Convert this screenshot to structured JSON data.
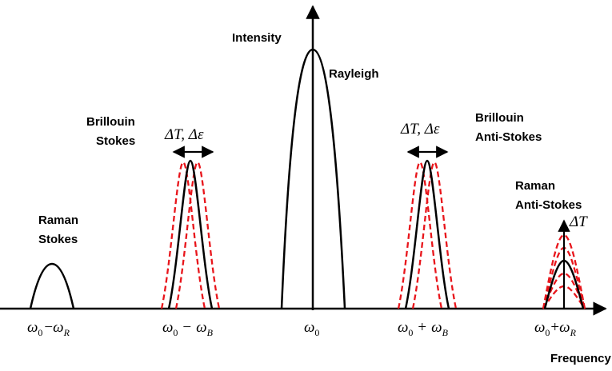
{
  "axis": {
    "y_label": "Intensity",
    "x_label": "Frequency"
  },
  "peaks": {
    "rayleigh": {
      "label": "Rayleigh"
    },
    "brillouin_stokes": {
      "label_line1": "Brillouin",
      "label_line2": "Stokes",
      "shift": "ΔT, Δε"
    },
    "brillouin_antistokes": {
      "label_line1": "Brillouin",
      "label_line2": "Anti-Stokes",
      "shift": "ΔT, Δε"
    },
    "raman_stokes": {
      "label_line1": "Raman",
      "label_line2": "Stokes"
    },
    "raman_antistokes": {
      "label_line1": "Raman",
      "label_line2": "Anti-Stokes",
      "shift": "ΔT"
    }
  },
  "tick_labels": {
    "raman_stokes": {
      "base": "ω",
      "sub": "0",
      "op": "−",
      "var": "ω",
      "vsub": "R"
    },
    "brillouin_stokes": {
      "base": "ω",
      "sub": "0",
      "op": "−",
      "var": "ω",
      "vsub": "B"
    },
    "rayleigh": {
      "base": "ω",
      "sub": "0"
    },
    "brillouin_antistokes": {
      "base": "ω",
      "sub": "0",
      "op": "+",
      "var": "ω",
      "vsub": "B"
    },
    "raman_antistokes": {
      "base": "ω",
      "sub": "0",
      "op": "+",
      "var": "ω",
      "vsub": "R"
    }
  },
  "colors": {
    "axis": "#000000",
    "nominal_peak": "#000000",
    "shifted_peak": "#e8151b"
  }
}
